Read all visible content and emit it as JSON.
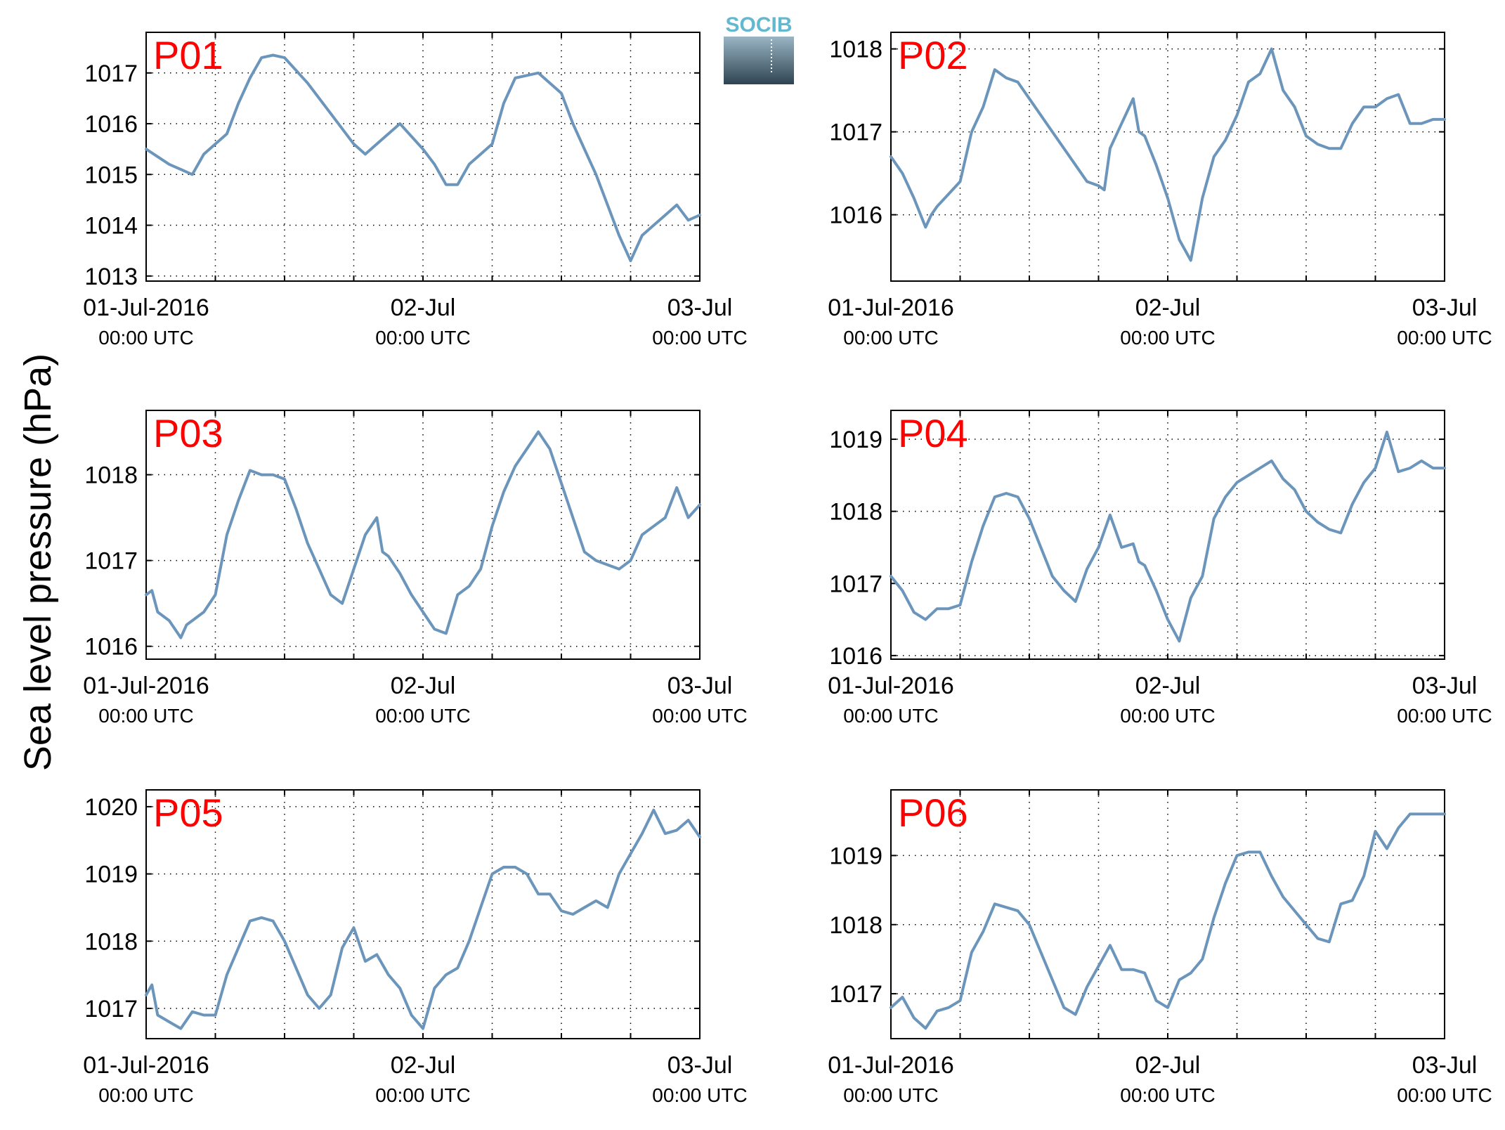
{
  "figure": {
    "ylabel": "Sea level pressure (hPa)",
    "logo_text": "SOCIB",
    "line_color": "#6b95ba",
    "label_color": "#ff0000",
    "logo_color": "#62b8cf"
  },
  "chart_data": [
    {
      "type": "line",
      "label": "P01",
      "ylim": [
        1012.9,
        1017.8
      ],
      "yticks": [
        1013,
        1014,
        1015,
        1016,
        1017
      ],
      "x_range": [
        "01-Jul-2016 00:00 UTC",
        "03-Jul-2016 00:00 UTC"
      ],
      "x_hours": [
        0,
        2,
        4,
        5,
        6,
        7,
        8,
        9,
        10,
        11,
        12,
        14,
        16,
        18,
        19,
        20,
        22,
        24,
        25,
        26,
        27,
        28,
        29,
        30,
        31,
        32,
        34,
        36,
        37,
        38,
        39,
        40,
        41,
        42,
        43,
        44,
        45,
        46,
        47,
        48
      ],
      "values": [
        1015.5,
        1015.2,
        1015.0,
        1015.4,
        1015.6,
        1015.8,
        1016.4,
        1016.9,
        1017.3,
        1017.35,
        1017.3,
        1016.8,
        1016.2,
        1015.6,
        1015.4,
        1015.6,
        1016.0,
        1015.5,
        1015.2,
        1014.8,
        1014.8,
        1015.2,
        1015.4,
        1015.6,
        1016.4,
        1016.9,
        1017.0,
        1016.6,
        1016.0,
        1015.5,
        1015.0,
        1014.4,
        1013.8,
        1013.3,
        1013.8,
        1014.0,
        1014.2,
        1014.4,
        1014.1,
        1014.2
      ],
      "grid": true
    },
    {
      "type": "line",
      "label": "P02",
      "ylim": [
        1015.2,
        1018.2
      ],
      "yticks": [
        1016,
        1017,
        1018
      ],
      "x_range": [
        "01-Jul-2016 00:00 UTC",
        "03-Jul-2016 00:00 UTC"
      ],
      "x_hours": [
        0,
        1,
        2,
        3,
        3.5,
        4,
        5,
        6,
        7,
        8,
        9,
        10,
        11,
        12,
        13,
        14,
        16,
        17,
        18,
        18.5,
        19,
        20,
        21,
        21.5,
        22,
        23,
        24,
        25,
        26,
        27,
        28,
        29,
        30,
        31,
        32,
        33,
        34,
        35,
        36,
        37,
        38,
        39,
        40,
        41,
        42,
        43,
        44,
        45,
        46,
        47,
        48
      ],
      "values": [
        1016.7,
        1016.5,
        1016.2,
        1015.85,
        1016.0,
        1016.1,
        1016.25,
        1016.4,
        1017.0,
        1017.3,
        1017.75,
        1017.65,
        1017.6,
        1017.4,
        1017.2,
        1017.0,
        1016.6,
        1016.4,
        1016.35,
        1016.3,
        1016.8,
        1017.1,
        1017.4,
        1017.0,
        1016.95,
        1016.6,
        1016.2,
        1015.7,
        1015.45,
        1016.2,
        1016.7,
        1016.9,
        1017.2,
        1017.6,
        1017.7,
        1018.0,
        1017.5,
        1017.3,
        1016.95,
        1016.85,
        1016.8,
        1016.8,
        1017.1,
        1017.3,
        1017.3,
        1017.4,
        1017.45,
        1017.1,
        1017.1,
        1017.15,
        1017.15
      ],
      "grid": true
    },
    {
      "type": "line",
      "label": "P03",
      "ylim": [
        1015.85,
        1018.75
      ],
      "yticks": [
        1016,
        1017,
        1018
      ],
      "x_range": [
        "01-Jul-2016 00:00 UTC",
        "03-Jul-2016 00:00 UTC"
      ],
      "x_hours": [
        0,
        0.5,
        1,
        2,
        3,
        3.5,
        4,
        5,
        6,
        7,
        8,
        9,
        10,
        11,
        12,
        13,
        14,
        15,
        16,
        17,
        18,
        19,
        20,
        20.5,
        21,
        22,
        23,
        24,
        25,
        26,
        27,
        28,
        29,
        30,
        31,
        32,
        33,
        34,
        35,
        36,
        37,
        38,
        39,
        40,
        41,
        42,
        43,
        44,
        45,
        46,
        47,
        48
      ],
      "values": [
        1016.6,
        1016.65,
        1016.4,
        1016.3,
        1016.1,
        1016.25,
        1016.3,
        1016.4,
        1016.6,
        1017.3,
        1017.7,
        1018.05,
        1018.0,
        1018.0,
        1017.95,
        1017.6,
        1017.2,
        1016.9,
        1016.6,
        1016.5,
        1016.9,
        1017.3,
        1017.5,
        1017.1,
        1017.05,
        1016.85,
        1016.6,
        1016.4,
        1016.2,
        1016.15,
        1016.6,
        1016.7,
        1016.9,
        1017.4,
        1017.8,
        1018.1,
        1018.3,
        1018.5,
        1018.3,
        1017.9,
        1017.5,
        1017.1,
        1017.0,
        1016.95,
        1016.9,
        1017.0,
        1017.3,
        1017.4,
        1017.5,
        1017.85,
        1017.5,
        1017.65
      ],
      "grid": true
    },
    {
      "type": "line",
      "label": "P04",
      "ylim": [
        1015.95,
        1019.4
      ],
      "yticks": [
        1016,
        1017,
        1018,
        1019
      ],
      "x_range": [
        "01-Jul-2016 00:00 UTC",
        "03-Jul-2016 00:00 UTC"
      ],
      "x_hours": [
        0,
        1,
        2,
        3,
        4,
        5,
        6,
        7,
        8,
        9,
        10,
        11,
        12,
        13,
        14,
        15,
        16,
        17,
        18,
        19,
        20,
        21,
        21.5,
        22,
        23,
        24,
        25,
        26,
        27,
        28,
        29,
        30,
        31,
        32,
        33,
        34,
        35,
        36,
        37,
        38,
        39,
        40,
        41,
        42,
        43,
        44,
        45,
        46,
        47,
        48
      ],
      "values": [
        1017.1,
        1016.9,
        1016.6,
        1016.5,
        1016.65,
        1016.65,
        1016.7,
        1017.3,
        1017.8,
        1018.2,
        1018.25,
        1018.2,
        1017.9,
        1017.5,
        1017.1,
        1016.9,
        1016.75,
        1017.2,
        1017.5,
        1017.95,
        1017.5,
        1017.55,
        1017.3,
        1017.25,
        1016.9,
        1016.5,
        1016.2,
        1016.8,
        1017.1,
        1017.9,
        1018.2,
        1018.4,
        1018.5,
        1018.6,
        1018.7,
        1018.45,
        1018.3,
        1018.0,
        1017.85,
        1017.75,
        1017.7,
        1018.1,
        1018.4,
        1018.6,
        1019.1,
        1018.55,
        1018.6,
        1018.7,
        1018.6,
        1018.6
      ],
      "grid": true
    },
    {
      "type": "line",
      "label": "P05",
      "ylim": [
        1016.55,
        1020.25
      ],
      "yticks": [
        1017,
        1018,
        1019,
        1020
      ],
      "x_range": [
        "01-Jul-2016 00:00 UTC",
        "03-Jul-2016 00:00 UTC"
      ],
      "x_hours": [
        0,
        0.5,
        1,
        2,
        3,
        4,
        5,
        6,
        7,
        8,
        9,
        10,
        11,
        12,
        13,
        14,
        15,
        16,
        17,
        18,
        19,
        20,
        21,
        22,
        23,
        24,
        25,
        26,
        27,
        28,
        29,
        30,
        31,
        32,
        33,
        34,
        35,
        36,
        37,
        38,
        39,
        40,
        41,
        42,
        43,
        44,
        45,
        46,
        47,
        48
      ],
      "values": [
        1017.2,
        1017.35,
        1016.9,
        1016.8,
        1016.7,
        1016.95,
        1016.9,
        1016.9,
        1017.5,
        1017.9,
        1018.3,
        1018.35,
        1018.3,
        1018.0,
        1017.6,
        1017.2,
        1017.0,
        1017.2,
        1017.9,
        1018.2,
        1017.7,
        1017.8,
        1017.5,
        1017.3,
        1016.9,
        1016.7,
        1017.3,
        1017.5,
        1017.6,
        1018.0,
        1018.5,
        1019.0,
        1019.1,
        1019.1,
        1019.0,
        1018.7,
        1018.7,
        1018.45,
        1018.4,
        1018.5,
        1018.6,
        1018.5,
        1019.0,
        1019.3,
        1019.6,
        1019.95,
        1019.6,
        1019.65,
        1019.8,
        1019.55
      ],
      "grid": true
    },
    {
      "type": "line",
      "label": "P06",
      "ylim": [
        1016.35,
        1019.95
      ],
      "yticks": [
        1017,
        1018,
        1019
      ],
      "x_range": [
        "01-Jul-2016 00:00 UTC",
        "03-Jul-2016 00:00 UTC"
      ],
      "x_hours": [
        0,
        1,
        2,
        3,
        4,
        5,
        6,
        7,
        8,
        9,
        10,
        11,
        12,
        13,
        14,
        15,
        16,
        17,
        18,
        19,
        20,
        21,
        22,
        23,
        24,
        25,
        26,
        27,
        28,
        29,
        30,
        31,
        32,
        33,
        34,
        35,
        36,
        37,
        38,
        39,
        40,
        41,
        42,
        43,
        44,
        45,
        46,
        47,
        48
      ],
      "values": [
        1016.8,
        1016.95,
        1016.65,
        1016.5,
        1016.75,
        1016.8,
        1016.9,
        1017.6,
        1017.9,
        1018.3,
        1018.25,
        1018.2,
        1018.0,
        1017.6,
        1017.2,
        1016.8,
        1016.7,
        1017.1,
        1017.4,
        1017.7,
        1017.35,
        1017.35,
        1017.3,
        1016.9,
        1016.8,
        1017.2,
        1017.3,
        1017.5,
        1018.1,
        1018.6,
        1019.0,
        1019.05,
        1019.05,
        1018.7,
        1018.4,
        1018.2,
        1018.0,
        1017.8,
        1017.75,
        1018.3,
        1018.35,
        1018.7,
        1019.35,
        1019.1,
        1019.4,
        1019.6,
        1019.6,
        1019.6,
        1019.6
      ],
      "grid": true
    }
  ]
}
